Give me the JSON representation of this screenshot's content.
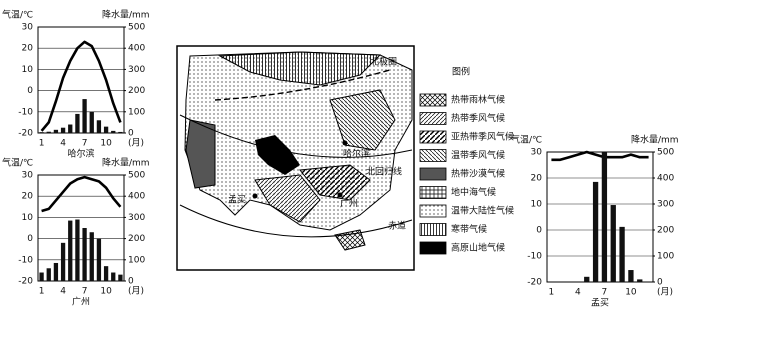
{
  "chart_data": [
    {
      "type": "climate",
      "title": "哈尔滨",
      "ylabel": "气温/℃",
      "y2label": "降水量/mm",
      "xlabel": "(月)",
      "categories": [
        1,
        null,
        null,
        4,
        null,
        null,
        7,
        null,
        null,
        10,
        null,
        null
      ],
      "ylim": [
        -20,
        30
      ],
      "yticks": [
        30,
        20,
        10,
        0,
        -10,
        -20
      ],
      "y2lim": [
        0,
        500
      ],
      "y2ticks": [
        500,
        400,
        300,
        200,
        100,
        0
      ],
      "grid": true,
      "series": [
        {
          "kind": "line",
          "color": "#000000",
          "values": [
            -19,
            -15,
            -5,
            6,
            14,
            20,
            23,
            21,
            14,
            5,
            -6,
            -15
          ]
        },
        {
          "kind": "bar",
          "axis": "y2",
          "color": "#111111",
          "values": [
            4,
            6,
            15,
            25,
            40,
            90,
            160,
            100,
            60,
            30,
            10,
            5
          ]
        }
      ]
    },
    {
      "type": "climate",
      "title": "广州",
      "ylabel": "气温/℃",
      "y2label": "降水量/mm",
      "xlabel": "(月)",
      "categories": [
        1,
        null,
        null,
        4,
        null,
        null,
        7,
        null,
        null,
        10,
        null,
        null
      ],
      "ylim": [
        -20,
        30
      ],
      "yticks": [
        30,
        20,
        10,
        0,
        -10,
        -20
      ],
      "y2lim": [
        0,
        500
      ],
      "y2ticks": [
        500,
        400,
        300,
        200,
        100,
        0
      ],
      "grid": true,
      "series": [
        {
          "kind": "line",
          "color": "#000000",
          "values": [
            13,
            14,
            18,
            22,
            26,
            28,
            29,
            28,
            27,
            24,
            19,
            15
          ]
        },
        {
          "kind": "bar",
          "axis": "y2",
          "color": "#111111",
          "values": [
            40,
            60,
            85,
            180,
            285,
            290,
            250,
            230,
            200,
            70,
            40,
            30
          ]
        }
      ]
    },
    {
      "type": "climate",
      "title": "孟买",
      "ylabel": "气温/℃",
      "y2label": "降水量/mm",
      "xlabel": "(月)",
      "categories": [
        1,
        null,
        null,
        4,
        null,
        null,
        7,
        null,
        null,
        10,
        null,
        null
      ],
      "ylim": [
        -20,
        30
      ],
      "yticks": [
        30,
        20,
        10,
        0,
        -10,
        -20
      ],
      "y2lim": [
        0,
        500
      ],
      "y2ticks": [
        500,
        400,
        300,
        200,
        100,
        0
      ],
      "grid": true,
      "series": [
        {
          "kind": "line",
          "color": "#000000",
          "values": [
            27,
            27,
            28,
            29,
            30,
            29,
            28,
            28,
            28,
            29,
            28,
            28
          ]
        },
        {
          "kind": "bar",
          "axis": "y2",
          "color": "#111111",
          "values": [
            0,
            0,
            0,
            0,
            20,
            385,
            500,
            296,
            212,
            46,
            10,
            0
          ]
        }
      ]
    }
  ],
  "map": {
    "legend_title": "图例",
    "legend": [
      "热带雨林气候",
      "热带季风气候",
      "亚热带季风气候",
      "温带季风气候",
      "热带沙漠气候",
      "地中海气候",
      "温带大陆性气候",
      "寒带气候",
      "高原山地气候"
    ],
    "labels": {
      "harbin": "哈尔滨",
      "guangzhou": "广州",
      "mumbai": "孟买",
      "tropic": "北回归线",
      "equator": "赤道",
      "arctic": "北极圈"
    }
  }
}
